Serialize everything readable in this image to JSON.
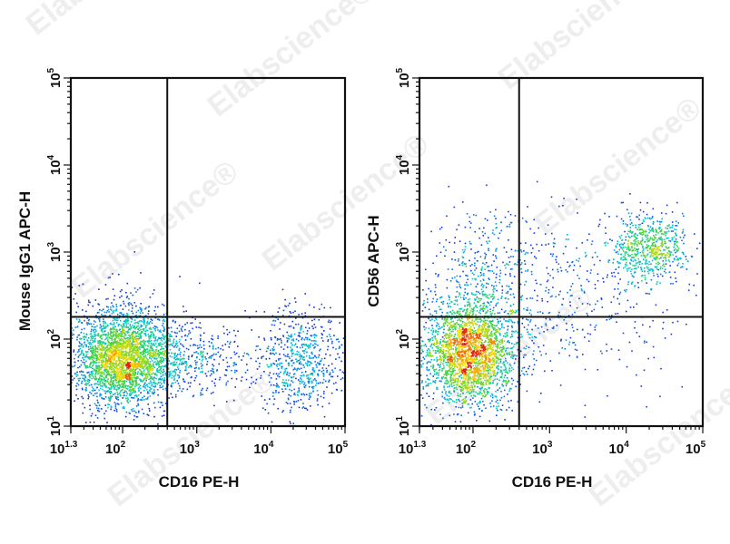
{
  "watermark": "Elabscience®",
  "chart_data": [
    {
      "type": "scatter",
      "subtype": "flow-cytometry-density-dot-plot",
      "xlabel": "CD16 PE-H",
      "ylabel": "Mouse IgG1 APC-H",
      "x_scale": "log",
      "y_scale": "log",
      "xlim": [
        20,
        100000
      ],
      "ylim": [
        10,
        100000
      ],
      "x_ticks": [
        {
          "value": 20,
          "base": "10",
          "exp": "1.3"
        },
        {
          "value": 100,
          "base": "10",
          "exp": "2"
        },
        {
          "value": 1000,
          "base": "10",
          "exp": "3"
        },
        {
          "value": 10000,
          "base": "10",
          "exp": "4"
        },
        {
          "value": 100000,
          "base": "10",
          "exp": "5"
        }
      ],
      "y_ticks": [
        {
          "value": 10,
          "base": "10",
          "exp": "1"
        },
        {
          "value": 100,
          "base": "10",
          "exp": "2"
        },
        {
          "value": 1000,
          "base": "10",
          "exp": "3"
        },
        {
          "value": 10000,
          "base": "10",
          "exp": "4"
        },
        {
          "value": 100000,
          "base": "10",
          "exp": "5"
        }
      ],
      "gate": {
        "x": 400,
        "y": 180
      },
      "clusters": [
        {
          "x": 95,
          "y": 60,
          "x_spread": 0.32,
          "y_spread": 0.28,
          "count": 2600
        },
        {
          "x": 420,
          "y": 60,
          "x_spread": 0.55,
          "y_spread": 0.2,
          "count": 700
        },
        {
          "x": 25000,
          "y": 55,
          "x_spread": 0.28,
          "y_spread": 0.3,
          "count": 650
        },
        {
          "x": 150,
          "y": 160,
          "x_spread": 0.45,
          "y_spread": 0.35,
          "count": 80
        }
      ]
    },
    {
      "type": "scatter",
      "subtype": "flow-cytometry-density-dot-plot",
      "xlabel": "CD16 PE-H",
      "ylabel": "CD56 APC-H",
      "x_scale": "log",
      "y_scale": "log",
      "xlim": [
        20,
        100000
      ],
      "ylim": [
        10,
        100000
      ],
      "x_ticks": [
        {
          "value": 20,
          "base": "10",
          "exp": "1.3"
        },
        {
          "value": 100,
          "base": "10",
          "exp": "2"
        },
        {
          "value": 1000,
          "base": "10",
          "exp": "3"
        },
        {
          "value": 10000,
          "base": "10",
          "exp": "4"
        },
        {
          "value": 100000,
          "base": "10",
          "exp": "5"
        }
      ],
      "y_ticks": [
        {
          "value": 10,
          "base": "10",
          "exp": "1"
        },
        {
          "value": 100,
          "base": "10",
          "exp": "2"
        },
        {
          "value": 1000,
          "base": "10",
          "exp": "3"
        },
        {
          "value": 10000,
          "base": "10",
          "exp": "4"
        },
        {
          "value": 100000,
          "base": "10",
          "exp": "5"
        }
      ],
      "gate": {
        "x": 400,
        "y": 180
      },
      "clusters": [
        {
          "x": 90,
          "y": 70,
          "x_spread": 0.3,
          "y_spread": 0.3,
          "count": 2400
        },
        {
          "x": 20000,
          "y": 1100,
          "x_spread": 0.25,
          "y_spread": 0.2,
          "count": 650
        },
        {
          "x": 1500,
          "y": 300,
          "x_spread": 0.7,
          "y_spread": 0.5,
          "count": 450
        },
        {
          "x": 130,
          "y": 400,
          "x_spread": 0.3,
          "y_spread": 0.45,
          "count": 350
        }
      ]
    }
  ]
}
